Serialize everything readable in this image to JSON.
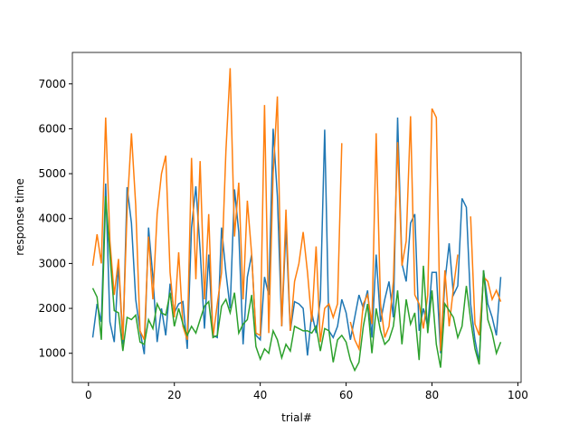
{
  "chart_data": {
    "type": "line",
    "xlabel": "trial#",
    "ylabel": "response time",
    "x": [
      1,
      2,
      3,
      4,
      5,
      6,
      7,
      8,
      9,
      10,
      11,
      12,
      13,
      14,
      15,
      16,
      17,
      18,
      19,
      20,
      21,
      22,
      23,
      24,
      25,
      26,
      27,
      28,
      29,
      30,
      31,
      32,
      33,
      34,
      35,
      36,
      37,
      38,
      39,
      40,
      41,
      42,
      43,
      44,
      45,
      46,
      47,
      48,
      49,
      50,
      51,
      52,
      53,
      54,
      55,
      56,
      57,
      58,
      59,
      60,
      61,
      62,
      63,
      64,
      65,
      66,
      67,
      68,
      69,
      70,
      71,
      72,
      73,
      74,
      75,
      76,
      77,
      78,
      79,
      80,
      81,
      82,
      83,
      84,
      85,
      86,
      87,
      88,
      89,
      90,
      91,
      92,
      93,
      94,
      95,
      96
    ],
    "series": [
      {
        "color": "#1f77b4",
        "values": [
          1350,
          2100,
          1700,
          4780,
          1700,
          1250,
          3000,
          1200,
          4700,
          3900,
          2200,
          1500,
          980,
          3800,
          2700,
          1250,
          2000,
          1400,
          2550,
          1900,
          2100,
          2150,
          1100,
          3800,
          4720,
          3300,
          1550,
          3200,
          1400,
          1350,
          3800,
          2800,
          2000,
          4650,
          3700,
          1200,
          2700,
          3200,
          1400,
          1300,
          2700,
          2300,
          6000,
          4500,
          1600,
          3800,
          1500,
          2150,
          2100,
          2000,
          950,
          1900,
          1450,
          2200,
          5980,
          1500,
          1350,
          1600,
          2200,
          1900,
          1300,
          1800,
          2300,
          2000,
          2400,
          1350,
          3200,
          1700,
          2200,
          2600,
          1800,
          6250,
          3000,
          2600,
          3900,
          4100,
          1500,
          2000,
          1600,
          2800,
          2800,
          1000,
          2600,
          3450,
          2300,
          2500,
          4450,
          4250,
          2100,
          1300,
          800,
          2850,
          2100,
          1800,
          1400,
          2700
        ]
      },
      {
        "color": "#ff7f0e",
        "values": [
          2950,
          3650,
          3000,
          6250,
          3500,
          2300,
          3100,
          1300,
          4200,
          5900,
          4300,
          1500,
          1300,
          3600,
          2200,
          4100,
          5000,
          5400,
          2800,
          1800,
          3250,
          1600,
          1300,
          5350,
          2650,
          5280,
          2200,
          4100,
          1350,
          2100,
          2800,
          5500,
          7350,
          3600,
          4800,
          2200,
          4400,
          3200,
          1450,
          1400,
          6530,
          1450,
          5000,
          6720,
          1600,
          4200,
          1500,
          2600,
          3000,
          3700,
          2800,
          1700,
          3380,
          1250,
          2000,
          2100,
          1800,
          2100,
          5680,
          null,
          1700,
          1300,
          1100,
          2100,
          2300,
          1650,
          5900,
          2100,
          1350,
          1600,
          2600,
          5700,
          2950,
          3500,
          6280,
          2300,
          2100,
          1550,
          2300,
          6450,
          6250,
          1050,
          2850,
          1600,
          2450,
          3200,
          null,
          null,
          4050,
          1650,
          1400,
          2700,
          2600,
          2200,
          2400,
          2150
        ]
      },
      {
        "color": "#2ca02c",
        "values": [
          2450,
          2250,
          1300,
          4500,
          3200,
          1950,
          1900,
          1050,
          1800,
          1750,
          1850,
          1250,
          1200,
          1750,
          1550,
          2100,
          1900,
          1850,
          2350,
          1600,
          2000,
          1650,
          1400,
          1600,
          1450,
          1750,
          2050,
          2150,
          1350,
          1400,
          2050,
          2200,
          1900,
          2350,
          1450,
          1650,
          1750,
          2300,
          1150,
          870,
          1100,
          1000,
          1500,
          1300,
          900,
          1200,
          1050,
          1600,
          1550,
          1500,
          1500,
          1450,
          1600,
          1050,
          1550,
          1500,
          800,
          1300,
          1400,
          1250,
          850,
          620,
          800,
          1600,
          2100,
          1000,
          2000,
          1500,
          1200,
          1300,
          1600,
          2400,
          1200,
          2200,
          1650,
          1900,
          850,
          2950,
          1450,
          2400,
          1200,
          680,
          2100,
          1950,
          1800,
          1350,
          1600,
          2500,
          1750,
          1100,
          750,
          2850,
          1750,
          1450,
          1000,
          1250
        ]
      }
    ],
    "xlim": [
      -3.75,
      100.75
    ],
    "xticks": [
      0,
      20,
      40,
      60,
      80,
      100
    ],
    "ylim": [
      350,
      7700
    ],
    "yticks": [
      1000,
      2000,
      3000,
      4000,
      5000,
      6000,
      7000
    ]
  }
}
